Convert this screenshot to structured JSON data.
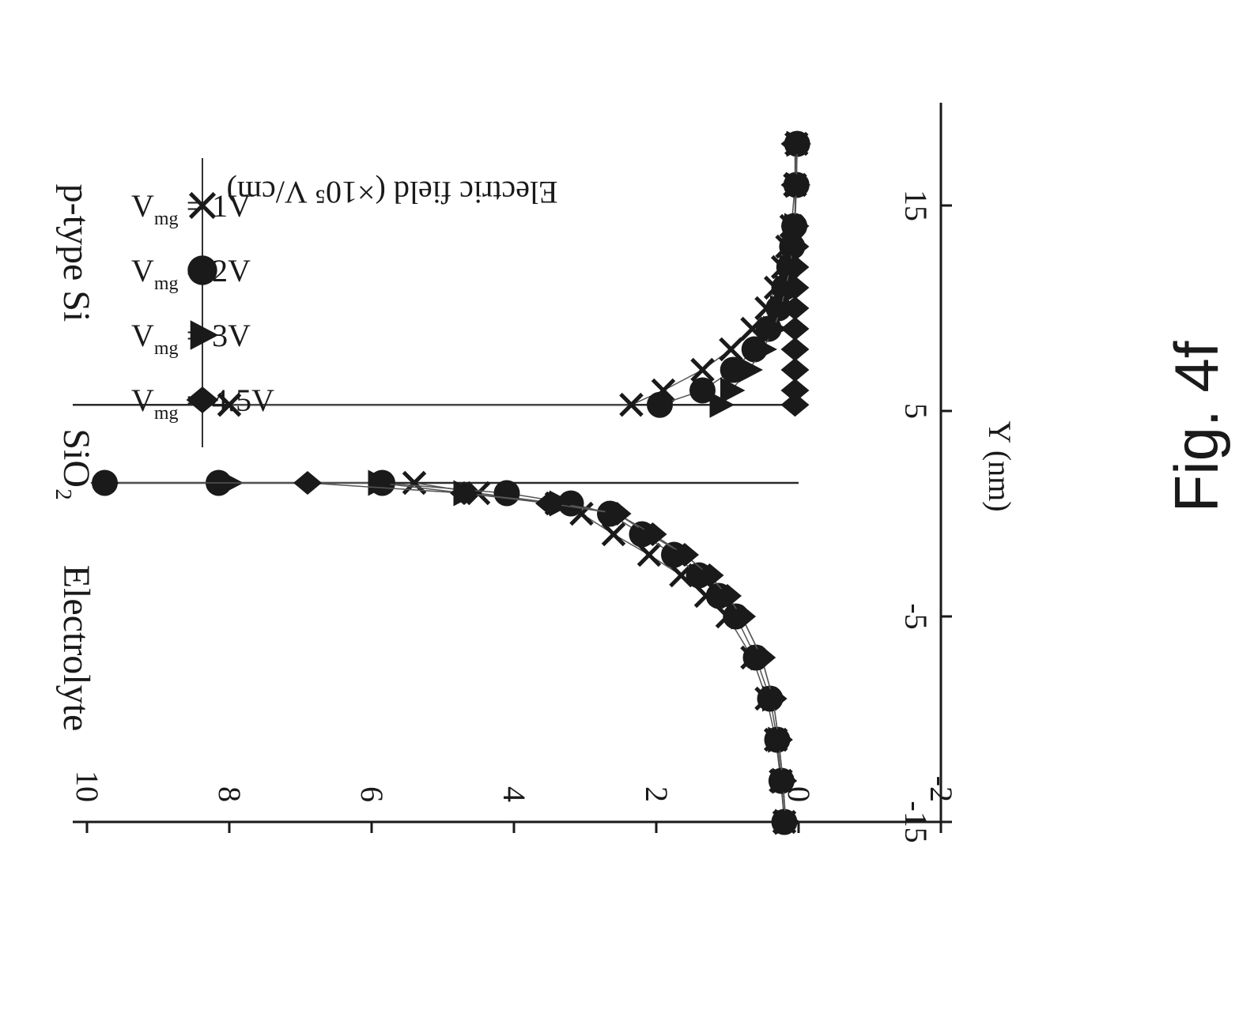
{
  "chart_data": {
    "type": "scatter",
    "xlabel": "Y (nm)",
    "ylabel": "Electric field (×10⁵ V/cm)",
    "xlim": [
      -15,
      20
    ],
    "ylim": [
      -2,
      10
    ],
    "xticks": [
      -15,
      -5,
      5,
      15
    ],
    "yticks": [
      10,
      8,
      6,
      4,
      2,
      0,
      -2
    ],
    "grid": false,
    "legend_position": "top-right",
    "region_labels": [
      "p-type Si",
      "SiO₂",
      "Electrolyte"
    ],
    "series": [
      {
        "name": "V_mg = 1V",
        "name_main": "V",
        "name_sub": "mg",
        "name_rest": " = 1V",
        "marker": "x",
        "x": [
          -15,
          -13,
          -11,
          -9,
          -7,
          -5,
          -4,
          -3,
          -2,
          -1,
          0,
          0.5,
          1,
          1.5,
          5.3,
          5.3,
          6,
          7,
          8,
          9,
          10,
          11,
          12,
          13,
          14,
          16,
          18
        ],
        "y": [
          0.2,
          0.25,
          0.32,
          0.45,
          0.65,
          1.0,
          1.3,
          1.65,
          2.1,
          2.6,
          3.05,
          3.4,
          4.5,
          5.4,
          8.0,
          2.35,
          1.9,
          1.35,
          0.95,
          0.65,
          0.45,
          0.32,
          0.22,
          0.16,
          0.1,
          0.05,
          0.03
        ]
      },
      {
        "name": "V_mg = 2V",
        "name_main": "V",
        "name_sub": "mg",
        "name_rest": " = 2V",
        "marker": "circle",
        "x": [
          -15,
          -13,
          -11,
          -9,
          -7,
          -5,
          -4,
          -3,
          -2,
          -1,
          0,
          0.5,
          1,
          1.5,
          1.5,
          1.5,
          5.3,
          6,
          7,
          8,
          9,
          10,
          11,
          12,
          13,
          14,
          16,
          18
        ],
        "y": [
          0.2,
          0.24,
          0.3,
          0.4,
          0.6,
          0.88,
          1.12,
          1.4,
          1.75,
          2.2,
          2.65,
          3.2,
          4.1,
          5.85,
          8.15,
          9.75,
          1.95,
          1.35,
          0.92,
          0.62,
          0.42,
          0.28,
          0.2,
          0.13,
          0.09,
          0.06,
          0.03,
          0.02
        ]
      },
      {
        "name": "V_mg = 3V",
        "name_main": "V",
        "name_sub": "mg",
        "name_rest": " = 3V",
        "marker": "triangle",
        "x": [
          -15,
          -13,
          -11,
          -9,
          -7,
          -5,
          -4,
          -3,
          -2,
          -1,
          0,
          0.5,
          1,
          1.5,
          1.5,
          5.3,
          6,
          7,
          8,
          9,
          10,
          11,
          12,
          13,
          14,
          16,
          18
        ],
        "y": [
          0.18,
          0.22,
          0.28,
          0.36,
          0.52,
          0.8,
          1.0,
          1.25,
          1.6,
          2.1,
          2.55,
          3.35,
          4.7,
          5.9,
          8.0,
          1.1,
          0.95,
          0.7,
          0.5,
          0.35,
          0.25,
          0.18,
          0.12,
          0.08,
          0.05,
          0.03,
          0.02
        ]
      },
      {
        "name": "V_mg = 4.5V",
        "name_main": "V",
        "name_sub": "mg",
        "name_rest": " = 4.5V",
        "marker": "diamond",
        "x": [
          -15,
          -13,
          -11,
          -9,
          -7,
          -5,
          -4,
          -3,
          -2,
          -1,
          0,
          0.5,
          1,
          1.5,
          1.5,
          5.3,
          6,
          7,
          8,
          9,
          10,
          11,
          12,
          13,
          14,
          16,
          18
        ],
        "y": [
          0.18,
          0.22,
          0.28,
          0.36,
          0.52,
          0.8,
          1.0,
          1.25,
          1.6,
          2.05,
          2.55,
          3.5,
          4.7,
          6.9,
          9.75,
          0.05,
          0.05,
          0.05,
          0.05,
          0.05,
          0.05,
          0.05,
          0.05,
          0.05,
          0.05,
          0.05,
          0.05
        ]
      }
    ]
  },
  "figure_caption": "Fig. 4f"
}
